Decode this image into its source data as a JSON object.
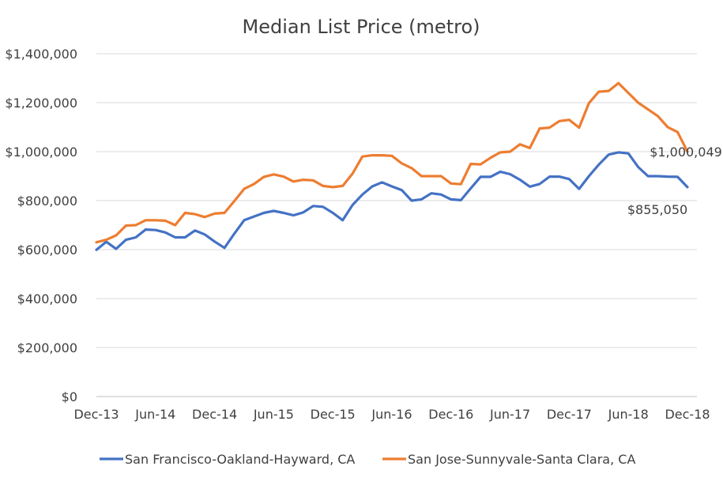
{
  "chart_data": {
    "type": "line",
    "title": "Median List Price (metro)",
    "xlabel": "",
    "ylabel": "",
    "ylim": [
      0,
      1400000
    ],
    "yticks": [
      0,
      200000,
      400000,
      600000,
      800000,
      1000000,
      1200000,
      1400000
    ],
    "ytick_labels": [
      "$0",
      "$200,000",
      "$400,000",
      "$600,000",
      "$800,000",
      "$1,000,000",
      "$1,200,000",
      "$1,400,000"
    ],
    "xtick_labels": [
      "Dec-13",
      "Jun-14",
      "Dec-14",
      "Jun-15",
      "Dec-15",
      "Jun-16",
      "Dec-16",
      "Jun-17",
      "Dec-17",
      "Jun-18",
      "Dec-18"
    ],
    "xtick_step": 6,
    "grid": true,
    "legend_position": "bottom",
    "series": [
      {
        "name": "San Francisco-Oakland-Hayward,  CA",
        "color": "#4472C4",
        "values": [
          599000,
          632000,
          603000,
          640000,
          650000,
          682000,
          680000,
          670000,
          650000,
          650000,
          678000,
          662000,
          633000,
          607000,
          665000,
          720000,
          735000,
          750000,
          758000,
          750000,
          740000,
          752000,
          778000,
          775000,
          750000,
          720000,
          782000,
          825000,
          858000,
          875000,
          858000,
          843000,
          800000,
          805000,
          830000,
          825000,
          805000,
          802000,
          850000,
          897000,
          897000,
          918000,
          908000,
          885000,
          857000,
          868000,
          898000,
          898000,
          888000,
          848000,
          900000,
          947000,
          988000,
          997000,
          993000,
          937000,
          900000,
          900000,
          898000,
          897000,
          855050
        ]
      },
      {
        "name": "San Jose-Sunnyvale-Santa Clara, CA",
        "color": "#ED7D31",
        "values": [
          630000,
          640000,
          658000,
          698000,
          700000,
          720000,
          720000,
          718000,
          700000,
          750000,
          745000,
          733000,
          747000,
          750000,
          798000,
          848000,
          868000,
          897000,
          907000,
          898000,
          878000,
          885000,
          883000,
          860000,
          855000,
          860000,
          910000,
          980000,
          985000,
          985000,
          983000,
          952000,
          933000,
          900000,
          900000,
          900000,
          870000,
          867000,
          950000,
          948000,
          975000,
          997000,
          1000000,
          1030000,
          1015000,
          1095000,
          1098000,
          1125000,
          1130000,
          1098000,
          1198000,
          1245000,
          1248000,
          1280000,
          1240000,
          1200000,
          1173000,
          1145000,
          1100000,
          1080000,
          1000049
        ]
      }
    ],
    "data_labels": [
      {
        "series": 1,
        "text": "$1,000,049"
      },
      {
        "series": 0,
        "text": "$855,050"
      }
    ]
  }
}
